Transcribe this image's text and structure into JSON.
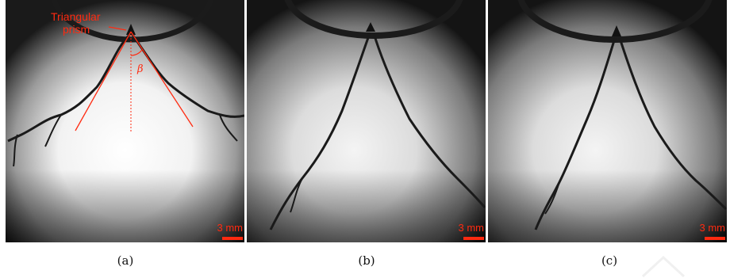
{
  "panels": [
    {
      "caption": "(a)",
      "scale_label": "3 mm"
    },
    {
      "caption": "(b)",
      "scale_label": "3 mm"
    },
    {
      "caption": "(c)",
      "scale_label": "3 mm"
    }
  ],
  "annotations": {
    "prism_label_line1": "Triangular",
    "prism_label_line2": "prism",
    "angle_symbol": "β"
  },
  "colors": {
    "annotation": "#ff2a10",
    "scale_bar": "#ff2a10"
  }
}
